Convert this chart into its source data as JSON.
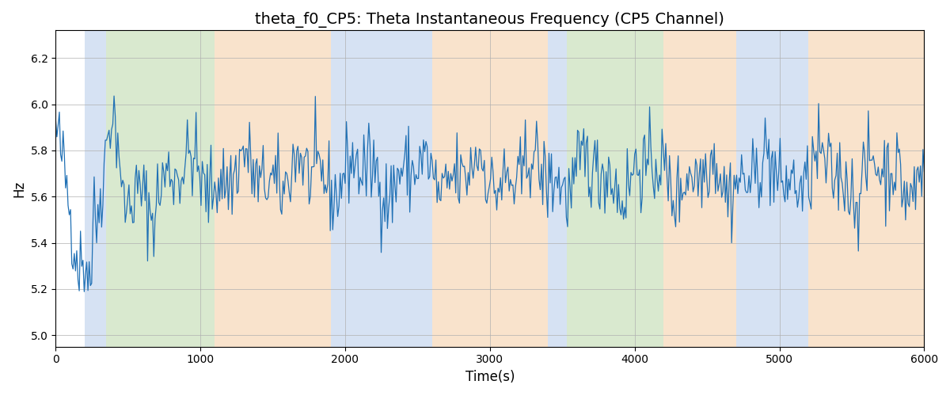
{
  "title": "theta_f0_CP5: Theta Instantaneous Frequency (CP5 Channel)",
  "xlabel": "Time(s)",
  "ylabel": "Hz",
  "xlim": [
    0,
    6000
  ],
  "ylim": [
    4.95,
    6.32
  ],
  "yticks": [
    5.0,
    5.2,
    5.4,
    5.6,
    5.8,
    6.0,
    6.2
  ],
  "xticks": [
    0,
    1000,
    2000,
    3000,
    4000,
    5000,
    6000
  ],
  "line_color": "#2171b5",
  "background_color": "#ffffff",
  "grid_color": "#b0b0b0",
  "regions": [
    {
      "start": 200,
      "end": 350,
      "color": "#aec6e8",
      "alpha": 0.5
    },
    {
      "start": 350,
      "end": 1100,
      "color": "#b5d5a0",
      "alpha": 0.5
    },
    {
      "start": 1100,
      "end": 1900,
      "color": "#f5c99a",
      "alpha": 0.5
    },
    {
      "start": 1900,
      "end": 2600,
      "color": "#aec6e8",
      "alpha": 0.5
    },
    {
      "start": 2600,
      "end": 3400,
      "color": "#f5c99a",
      "alpha": 0.5
    },
    {
      "start": 3400,
      "end": 3530,
      "color": "#aec6e8",
      "alpha": 0.5
    },
    {
      "start": 3530,
      "end": 4200,
      "color": "#b5d5a0",
      "alpha": 0.5
    },
    {
      "start": 4200,
      "end": 4700,
      "color": "#f5c99a",
      "alpha": 0.5
    },
    {
      "start": 4700,
      "end": 5200,
      "color": "#aec6e8",
      "alpha": 0.5
    },
    {
      "start": 5200,
      "end": 6000,
      "color": "#f5c99a",
      "alpha": 0.5
    }
  ],
  "seed": 42,
  "n_points": 700,
  "base_freq": 5.69,
  "noise_std": 0.09,
  "title_fontsize": 14
}
